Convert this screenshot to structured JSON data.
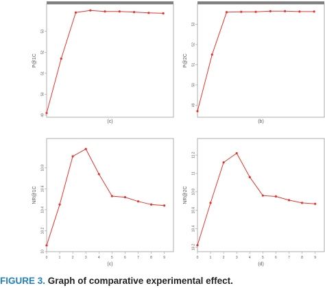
{
  "caption": {
    "label": "FIGURE 3.",
    "text": "Graph of comparative experimental effect."
  },
  "colors": {
    "series": "#e8322a",
    "frame": "#9a9a9a",
    "header_bar": "#808080"
  },
  "chart_data": [
    {
      "type": "line",
      "panel_label": "(c)",
      "ylabel": "P@1C",
      "x": [
        0,
        1,
        2,
        3,
        4,
        5,
        6,
        7,
        8
      ],
      "values": [
        49.1,
        51.7,
        53.9,
        54.0,
        53.95,
        53.95,
        53.92,
        53.88,
        53.86
      ],
      "xlim": [
        0,
        8.7
      ],
      "ylim": [
        48.9,
        54.3
      ],
      "yticks": [
        49,
        50,
        51,
        52,
        53
      ],
      "show_xticks": false,
      "header_bar": true
    },
    {
      "type": "line",
      "panel_label": "(b)",
      "ylabel": "P@2C",
      "x": [
        0,
        1,
        2,
        3,
        4,
        5,
        6,
        7,
        8
      ],
      "values": [
        48.7,
        51.5,
        53.6,
        53.62,
        53.62,
        53.65,
        53.65,
        53.63,
        53.63
      ],
      "xlim": [
        0,
        8.7
      ],
      "ylim": [
        48.4,
        54.0
      ],
      "yticks": [
        49,
        50,
        51,
        52,
        53
      ],
      "show_xticks": false,
      "header_bar": true
    },
    {
      "type": "line",
      "panel_label": "(c)",
      "ylabel": "NR@1C",
      "x": [
        0,
        1,
        2,
        3,
        4,
        5,
        6,
        7,
        8,
        9
      ],
      "values": [
        10.06,
        10.45,
        10.91,
        10.98,
        10.74,
        10.53,
        10.52,
        10.48,
        10.45,
        10.44
      ],
      "xlim": [
        0,
        9.7
      ],
      "ylim": [
        10.0,
        11.08
      ],
      "yticks": [
        10.0,
        10.2,
        10.4,
        10.6,
        10.8
      ],
      "xticks": [
        0,
        1,
        2,
        3,
        4,
        5,
        6,
        7,
        8,
        9
      ],
      "show_xticks": true,
      "header_bar": false
    },
    {
      "type": "line",
      "panel_label": "(d)",
      "ylabel": "NR@2C",
      "x": [
        0,
        1,
        2,
        3,
        4,
        5,
        6,
        7,
        8,
        9
      ],
      "values": [
        10.22,
        10.68,
        11.12,
        11.22,
        10.96,
        10.76,
        10.75,
        10.71,
        10.68,
        10.67
      ],
      "xlim": [
        0,
        9.7
      ],
      "ylim": [
        10.15,
        11.38
      ],
      "yticks": [
        10.2,
        10.4,
        10.6,
        10.8,
        11.0,
        11.2
      ],
      "xticks": [
        0,
        1,
        2,
        3,
        4,
        5,
        6,
        7,
        8,
        9
      ],
      "show_xticks": true,
      "header_bar": false
    }
  ]
}
